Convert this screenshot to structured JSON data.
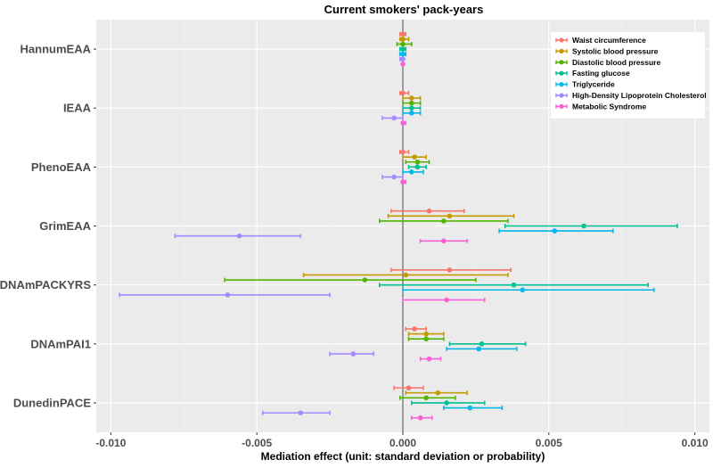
{
  "chart_data": {
    "type": "forest",
    "title": "Current smokers' pack-years",
    "xlabel": "Mediation effect (unit: standard deviation or probability)",
    "ylabel": "",
    "xlim": [
      -0.0105,
      0.0105
    ],
    "xticks": [
      -0.01,
      -0.005,
      0.0,
      0.005,
      0.01
    ],
    "xtick_labels": [
      "-0.010",
      "-0.005",
      "0.000",
      "0.005",
      "0.010"
    ],
    "reference_line": 0,
    "grid": true,
    "legend_position": "top-right",
    "categories": [
      "HannumEAA",
      "IEAA",
      "PhenoEAA",
      "GrimEAA",
      "DNAmPACKYRS",
      "DNAmPAI1",
      "DunedinPACE"
    ],
    "series": [
      {
        "name": "Waist circumference",
        "color": "#F8766D",
        "estimate": [
          0.0,
          0.0,
          0.0,
          0.0009,
          0.0016,
          0.0004,
          0.0002
        ],
        "lower": [
          -0.0001,
          -0.0001,
          -0.0001,
          -0.0004,
          -0.0004,
          0.0001,
          -0.0003
        ],
        "upper": [
          0.0001,
          0.0002,
          0.0002,
          0.0021,
          0.0037,
          0.0008,
          0.0007
        ]
      },
      {
        "name": "Systolic blood pressure",
        "color": "#C49A00",
        "estimate": [
          0.0,
          0.0003,
          0.0004,
          0.0016,
          0.0001,
          0.0008,
          0.0012
        ],
        "lower": [
          -0.0001,
          0.0,
          0.0,
          -0.0005,
          -0.0034,
          0.0002,
          0.0001
        ],
        "upper": [
          0.0002,
          0.0006,
          0.0008,
          0.0038,
          0.0036,
          0.0014,
          0.0022
        ]
      },
      {
        "name": "Diastolic blood pressure",
        "color": "#53B400",
        "estimate": [
          0.0,
          0.0003,
          0.0005,
          0.0014,
          -0.0013,
          0.0008,
          0.0008
        ],
        "lower": [
          -0.0002,
          0.0,
          0.0001,
          -0.0008,
          -0.0061,
          0.0002,
          -0.0001
        ],
        "upper": [
          0.0003,
          0.0006,
          0.0009,
          0.0036,
          0.0025,
          0.0014,
          0.0018
        ]
      },
      {
        "name": "Fasting glucose",
        "color": "#00C094",
        "estimate": [
          0.0,
          0.0003,
          0.0005,
          0.0062,
          0.0038,
          0.0027,
          0.0015
        ],
        "lower": [
          -0.0001,
          0.0,
          0.0002,
          0.0035,
          -0.0008,
          0.0016,
          0.0003
        ],
        "upper": [
          0.0001,
          0.0006,
          0.0008,
          0.0094,
          0.0084,
          0.0042,
          0.0028
        ]
      },
      {
        "name": "Triglyceride",
        "color": "#00B6EB",
        "estimate": [
          0.0,
          0.0003,
          0.0003,
          0.0052,
          0.0041,
          0.0026,
          0.0023
        ],
        "lower": [
          -0.0001,
          0.0,
          0.0,
          0.0033,
          0.0,
          0.0015,
          0.0014
        ],
        "upper": [
          0.0001,
          0.0006,
          0.0007,
          0.0072,
          0.0086,
          0.0039,
          0.0034
        ]
      },
      {
        "name": "High-Density Lipoprotein Cholesterol",
        "color": "#A58AFF",
        "estimate": [
          0.0,
          -0.0003,
          -0.0003,
          -0.0056,
          -0.006,
          -0.0017,
          -0.0035
        ],
        "lower": [
          -0.0001,
          -0.0007,
          -0.0007,
          -0.0078,
          -0.0097,
          -0.0025,
          -0.0048
        ],
        "upper": [
          0.0,
          0.0,
          0.0,
          -0.0035,
          -0.0025,
          -0.001,
          -0.0025
        ]
      },
      {
        "name": "Metabolic Syndrome",
        "color": "#FB61D7",
        "estimate": [
          0.0,
          0.0,
          0.0,
          0.0014,
          0.0015,
          0.0009,
          0.0006
        ],
        "lower": [
          0.0,
          0.0,
          0.0,
          0.0006,
          0.0,
          0.0006,
          0.0003
        ],
        "upper": [
          0.0,
          0.0001,
          0.0001,
          0.0022,
          0.0028,
          0.0013,
          0.001
        ]
      }
    ]
  }
}
